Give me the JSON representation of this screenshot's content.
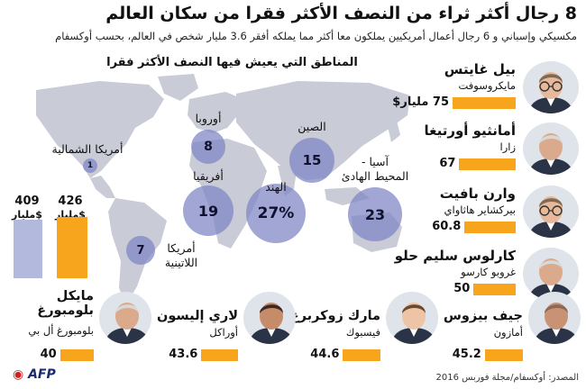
{
  "title": "8 رجال أكثر ثراء من النصف الأكثر فقرا من سكان العالم",
  "subtitle": "مكسيكي وإسباني و 6 رجال أعمال أمريكيين يملكون معا أكثر مما يملكه أفقر 3.6 مليار شخص في العالم، بحسب أوكسفام",
  "region_heading": "المناطق التي يعيش فيها النصف الأكثر فقرا",
  "regions": [
    {
      "name": "أمريكا الشمالية",
      "value": 1
    },
    {
      "name": "أوروبا",
      "value": 8
    },
    {
      "name": "الصين",
      "value": 15
    },
    {
      "name": "أفريقيا",
      "value": 19
    },
    {
      "name": "الهند",
      "value": "27%"
    },
    {
      "name": "آسيا -\nالمحيط الهادئ",
      "value": 23
    },
    {
      "name": "أمريكا\nاللاتينية",
      "value": 7
    }
  ],
  "comparison": {
    "items": [
      {
        "label": "409",
        "unit": "$مليار",
        "fill": 409,
        "color": "#b3b8dd"
      },
      {
        "label": "426",
        "unit": "$مليار",
        "fill": 426,
        "color": "#f7a51c"
      }
    ]
  },
  "people": [
    {
      "name": "بيل غايتس",
      "company": "مايكروسوفت",
      "value": "75",
      "unit": "مليار$",
      "amount": 75,
      "icon": "portrait-glasses-icon"
    },
    {
      "name": "أمانثيو أورتيغا",
      "company": "زارا",
      "value": "67",
      "unit": "",
      "amount": 67,
      "icon": "portrait-grey-icon"
    },
    {
      "name": "وارن بافيت",
      "company": "بيركشاير هاثاواي",
      "value": "60.8",
      "unit": "",
      "amount": 60.8,
      "icon": "portrait-glasses-icon"
    },
    {
      "name": "كارلوس سليم حلو",
      "company": "غروبو كارسو",
      "value": "50",
      "unit": "",
      "amount": 50,
      "icon": "portrait-grey-icon"
    }
  ],
  "bottom_people": [
    {
      "name": "جيف بيزوس",
      "company": "أمازون",
      "value": "45.2",
      "amount": 45.2,
      "icon": "portrait-bald-icon"
    },
    {
      "name": "مارك زوكربرغ",
      "company": "فيسبوك",
      "value": "44.6",
      "amount": 44.6,
      "icon": "portrait-young-icon"
    },
    {
      "name": "لاري إليسون",
      "company": "أوراكل",
      "value": "43.6",
      "amount": 43.6,
      "icon": "portrait-dark-icon"
    },
    {
      "name": "مايكل\nبلومبورغ",
      "company": "بلومبورغ أل بي",
      "value": "40",
      "amount": 40,
      "icon": "portrait-grey-icon"
    }
  ],
  "footer": {
    "source": "المصدر: أوكسفام/مجلة فوربس 2016",
    "logo": "AFP"
  }
}
